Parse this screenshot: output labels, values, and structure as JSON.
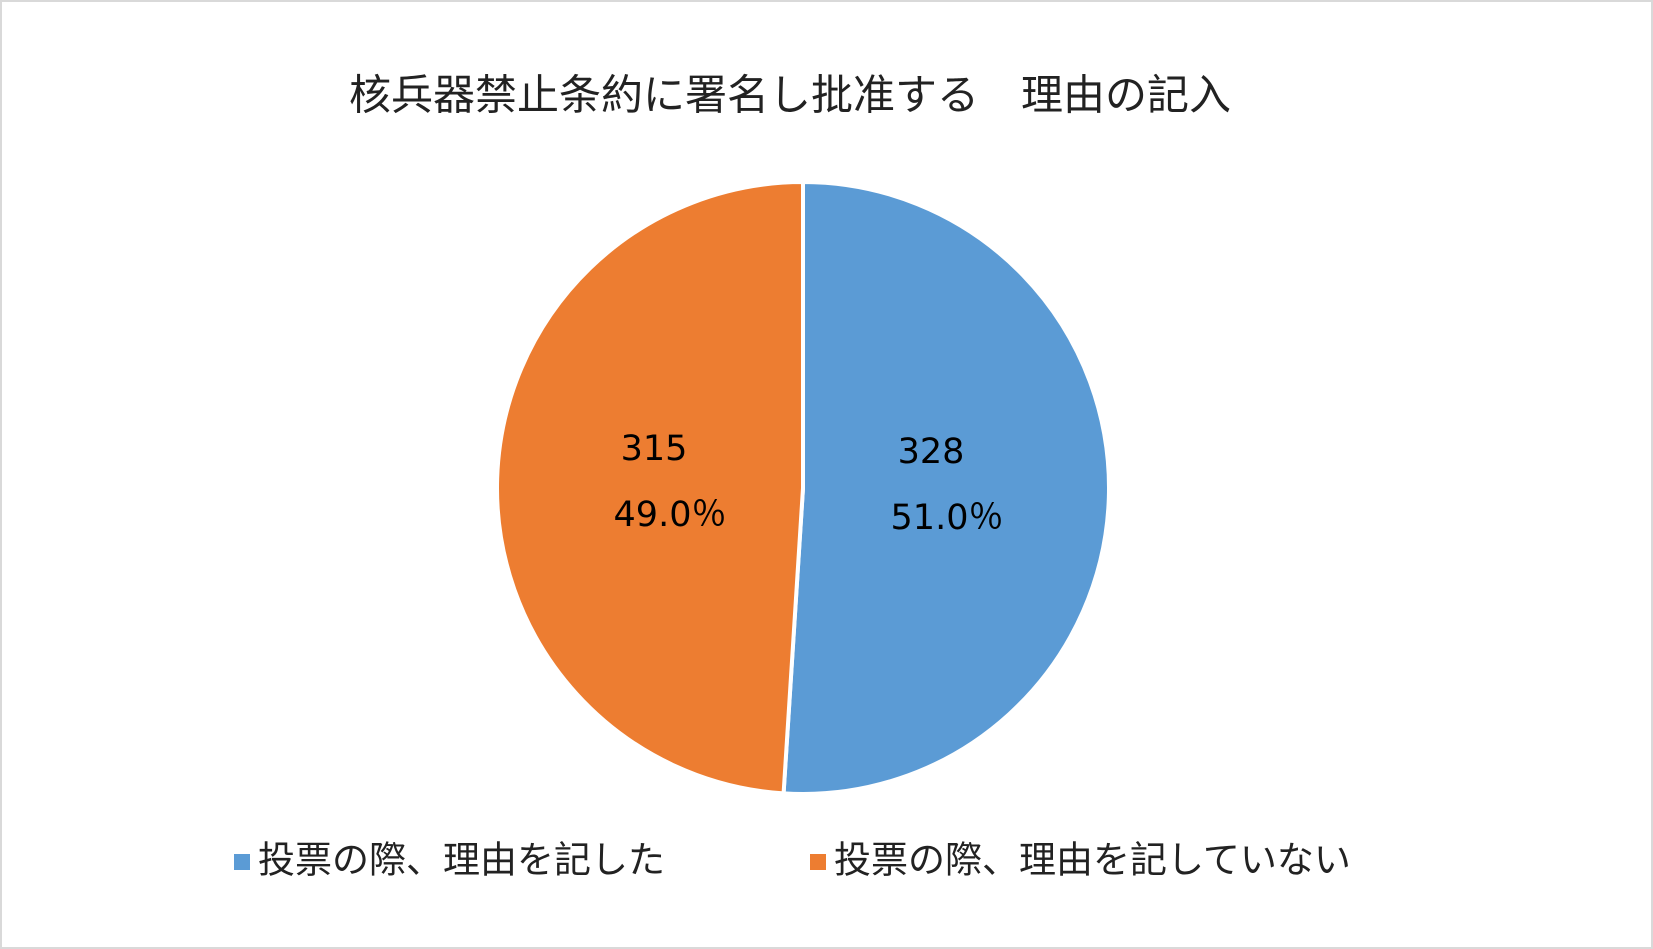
{
  "chart_data": {
    "type": "pie",
    "title": "核兵器禁止条約に署名し批准する　理由の記入",
    "categories": [
      "投票の際、理由を記した",
      "投票の際、理由を記していない"
    ],
    "values": [
      328,
      315
    ],
    "percentages": [
      51.0,
      49.0
    ],
    "percentage_labels": [
      "51.0％",
      "49.0％"
    ],
    "colors": [
      "#5b9bd5",
      "#ed7d31"
    ],
    "legend": "bottom"
  }
}
